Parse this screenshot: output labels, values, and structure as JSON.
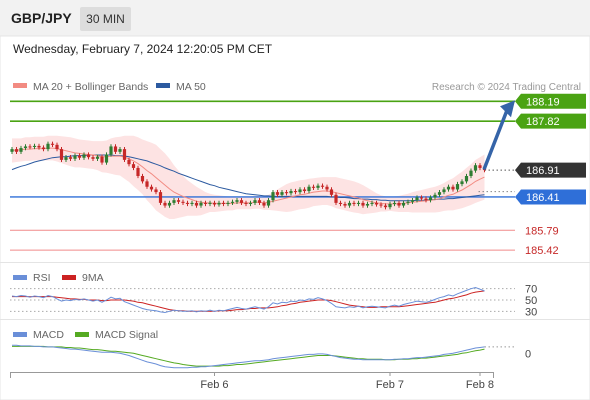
{
  "header": {
    "symbol": "GBP/JPY",
    "timeframe": "30 MIN"
  },
  "datetime": "Wednesday, February 7, 2024 12:20:05 PM CET",
  "credit": "Research © 2024 Trading Central",
  "colors": {
    "up": "#2e7d32",
    "down": "#c62828",
    "ma20": "#f28b82",
    "ma50": "#2c5aa0",
    "band_fill": "#fde3e3",
    "resistance": "#4aa313",
    "support": "#2f6fd8",
    "pivot_red": "#f08a8a",
    "arrow": "#3564a8",
    "rsi": "#6a8fd8",
    "rsi_ma": "#cc2222",
    "macd": "#6a8fd8",
    "macd_signal": "#55aa22"
  },
  "chart_data": [
    {
      "type": "candlestick",
      "name": "price",
      "legend": [
        {
          "label": "MA 20 + Bollinger Bands",
          "color": "#f28b82"
        },
        {
          "label": "MA 50",
          "color": "#2c5aa0"
        }
      ],
      "ylim": [
        185.2,
        188.4
      ],
      "x_ticks": [
        {
          "label": "Feb 6",
          "index": 45
        },
        {
          "label": "Feb 7",
          "index": 84
        },
        {
          "label": "Feb 8",
          "index": 104
        }
      ],
      "price_close": [
        187.3,
        187.25,
        187.32,
        187.35,
        187.34,
        187.36,
        187.33,
        187.3,
        187.4,
        187.38,
        187.3,
        187.1,
        187.15,
        187.12,
        187.18,
        187.14,
        187.2,
        187.15,
        187.12,
        187.16,
        187.05,
        187.2,
        187.35,
        187.25,
        187.3,
        187.1,
        187.02,
        186.95,
        186.8,
        186.7,
        186.6,
        186.55,
        186.5,
        186.3,
        186.25,
        186.3,
        186.35,
        186.32,
        186.3,
        186.28,
        186.3,
        186.25,
        186.3,
        186.28,
        186.3,
        186.27,
        186.3,
        186.28,
        186.3,
        186.32,
        186.35,
        186.3,
        186.28,
        186.3,
        186.35,
        186.3,
        186.25,
        186.35,
        186.5,
        186.45,
        186.5,
        186.48,
        186.52,
        186.5,
        186.55,
        186.52,
        186.6,
        186.58,
        186.62,
        186.6,
        186.55,
        186.45,
        186.3,
        186.28,
        186.25,
        186.3,
        186.28,
        186.3,
        186.25,
        186.28,
        186.3,
        186.27,
        186.25,
        186.22,
        186.28,
        186.3,
        186.25,
        186.3,
        186.32,
        186.35,
        186.4,
        186.38,
        186.35,
        186.4,
        186.45,
        186.5,
        186.55,
        186.6,
        186.55,
        186.65,
        186.7,
        186.8,
        186.9,
        187.0,
        186.95,
        186.91
      ],
      "ma20": [
        187.28,
        187.28,
        187.29,
        187.3,
        187.3,
        187.31,
        187.31,
        187.31,
        187.32,
        187.32,
        187.31,
        187.29,
        187.27,
        187.25,
        187.23,
        187.22,
        187.21,
        187.2,
        187.19,
        187.18,
        187.16,
        187.16,
        187.17,
        187.17,
        187.17,
        187.15,
        187.12,
        187.08,
        187.03,
        186.97,
        186.9,
        186.84,
        186.77,
        186.7,
        186.63,
        186.56,
        186.5,
        186.46,
        186.42,
        186.39,
        186.36,
        186.33,
        186.31,
        186.3,
        186.3,
        186.29,
        186.29,
        186.29,
        186.29,
        186.29,
        186.3,
        186.3,
        186.3,
        186.3,
        186.31,
        186.31,
        186.3,
        186.31,
        186.33,
        186.35,
        186.37,
        186.39,
        186.41,
        186.43,
        186.45,
        186.46,
        186.48,
        186.5,
        186.51,
        186.52,
        186.52,
        186.51,
        186.49,
        186.47,
        186.45,
        186.43,
        186.41,
        186.39,
        186.36,
        186.34,
        186.32,
        186.3,
        186.29,
        186.28,
        186.28,
        186.28,
        186.28,
        186.29,
        186.3,
        186.31,
        186.32,
        186.33,
        186.34,
        186.35,
        186.36,
        186.38,
        186.41,
        186.44,
        186.46,
        186.5,
        186.54,
        186.59,
        186.64,
        186.7,
        186.74,
        186.78
      ],
      "band_upper": [
        187.5,
        187.5,
        187.5,
        187.52,
        187.52,
        187.53,
        187.53,
        187.53,
        187.55,
        187.55,
        187.55,
        187.54,
        187.53,
        187.52,
        187.5,
        187.48,
        187.47,
        187.46,
        187.45,
        187.45,
        187.45,
        187.46,
        187.5,
        187.52,
        187.53,
        187.55,
        187.55,
        187.55,
        187.52,
        187.48,
        187.45,
        187.42,
        187.38,
        187.3,
        187.22,
        187.12,
        187.0,
        186.9,
        186.8,
        186.72,
        186.66,
        186.6,
        186.55,
        186.5,
        186.47,
        186.45,
        186.44,
        186.43,
        186.42,
        186.42,
        186.42,
        186.42,
        186.42,
        186.42,
        186.43,
        186.43,
        186.43,
        186.45,
        186.5,
        186.55,
        186.6,
        186.65,
        186.68,
        186.7,
        186.72,
        186.73,
        186.75,
        186.76,
        186.77,
        186.78,
        186.78,
        186.78,
        186.78,
        186.76,
        186.74,
        186.72,
        186.7,
        186.67,
        186.63,
        186.58,
        186.53,
        186.48,
        186.44,
        186.42,
        186.41,
        186.42,
        186.43,
        186.45,
        186.47,
        186.5,
        186.52,
        186.54,
        186.56,
        186.58,
        186.6,
        186.63,
        186.67,
        186.72,
        186.76,
        186.82,
        186.88,
        186.95,
        187.02,
        187.1,
        187.15,
        187.2
      ],
      "band_lower": [
        187.05,
        187.06,
        187.07,
        187.08,
        187.08,
        187.09,
        187.09,
        187.09,
        187.09,
        187.09,
        187.07,
        187.04,
        187.01,
        186.98,
        186.96,
        186.96,
        186.95,
        186.94,
        186.93,
        186.91,
        186.87,
        186.86,
        186.84,
        186.82,
        186.81,
        186.75,
        186.69,
        186.61,
        186.54,
        186.46,
        186.35,
        186.26,
        186.16,
        186.1,
        186.04,
        186.0,
        186.0,
        186.02,
        186.04,
        186.06,
        186.06,
        186.06,
        186.07,
        186.1,
        186.13,
        186.13,
        186.14,
        186.15,
        186.16,
        186.16,
        186.18,
        186.18,
        186.18,
        186.18,
        186.19,
        186.19,
        186.17,
        186.17,
        186.16,
        186.15,
        186.14,
        186.13,
        186.14,
        186.16,
        186.18,
        186.19,
        186.21,
        186.24,
        186.25,
        186.26,
        186.26,
        186.24,
        186.2,
        186.18,
        186.16,
        186.14,
        186.12,
        186.11,
        186.09,
        186.1,
        186.11,
        186.12,
        186.14,
        186.14,
        186.15,
        186.14,
        186.13,
        186.13,
        186.13,
        186.12,
        186.12,
        186.12,
        186.12,
        186.12,
        186.12,
        186.13,
        186.15,
        186.16,
        186.16,
        186.18,
        186.2,
        186.23,
        186.26,
        186.3,
        186.33,
        186.36
      ],
      "ma50": [
        186.92,
        186.95,
        186.98,
        187.0,
        187.03,
        187.06,
        187.08,
        187.1,
        187.12,
        187.14,
        187.15,
        187.16,
        187.16,
        187.17,
        187.18,
        187.18,
        187.18,
        187.19,
        187.19,
        187.19,
        187.19,
        187.19,
        187.19,
        187.18,
        187.18,
        187.17,
        187.16,
        187.14,
        187.12,
        187.1,
        187.08,
        187.05,
        187.02,
        186.99,
        186.95,
        186.92,
        186.89,
        186.85,
        186.82,
        186.79,
        186.76,
        186.73,
        186.7,
        186.67,
        186.64,
        186.62,
        186.59,
        186.57,
        186.55,
        186.53,
        186.51,
        186.49,
        186.47,
        186.46,
        186.45,
        186.44,
        186.43,
        186.43,
        186.42,
        186.42,
        186.42,
        186.42,
        186.42,
        186.42,
        186.42,
        186.42,
        186.42,
        186.42,
        186.42,
        186.42,
        186.42,
        186.41,
        186.41,
        186.4,
        186.4,
        186.39,
        186.38,
        186.38,
        186.37,
        186.37,
        186.36,
        186.36,
        186.35,
        186.35,
        186.34,
        186.34,
        186.34,
        186.34,
        186.34,
        186.34,
        186.35,
        186.35,
        186.35,
        186.36,
        186.36,
        186.37,
        186.37,
        186.38,
        186.38,
        186.39,
        186.4,
        186.41,
        186.42,
        186.43,
        186.44,
        186.45
      ],
      "levels": [
        {
          "value": 188.19,
          "label": "188.19",
          "kind": "resistance"
        },
        {
          "value": 187.82,
          "label": "187.82",
          "kind": "resistance"
        },
        {
          "value": 186.91,
          "label": "186.91",
          "kind": "last"
        },
        {
          "value": 186.41,
          "label": "186.41",
          "kind": "support"
        },
        {
          "value": 185.79,
          "label": "185.79",
          "kind": "pivot"
        },
        {
          "value": 185.42,
          "label": "185.42",
          "kind": "pivot"
        }
      ],
      "target_arrow": {
        "from_index": 105,
        "from_value": 186.91,
        "to_value": 188.19
      }
    },
    {
      "type": "line",
      "name": "rsi",
      "legend": [
        {
          "label": "RSI",
          "color": "#6a8fd8"
        },
        {
          "label": "9MA",
          "color": "#cc2222"
        }
      ],
      "ylim": [
        20,
        80
      ],
      "levels": [
        {
          "value": 70,
          "label": "70"
        },
        {
          "value": 50,
          "label": "50"
        },
        {
          "value": 30,
          "label": "30"
        }
      ],
      "rsi": [
        57,
        56,
        58,
        57,
        55,
        57,
        56,
        54,
        58,
        56,
        52,
        48,
        50,
        49,
        51,
        50,
        52,
        50,
        48,
        50,
        46,
        50,
        55,
        52,
        53,
        47,
        44,
        41,
        38,
        35,
        33,
        32,
        31,
        29,
        28,
        30,
        32,
        31,
        30,
        30,
        31,
        29,
        31,
        30,
        32,
        30,
        32,
        31,
        33,
        35,
        37,
        35,
        34,
        36,
        38,
        36,
        34,
        38,
        45,
        43,
        46,
        45,
        48,
        47,
        50,
        49,
        52,
        51,
        54,
        52,
        49,
        44,
        38,
        37,
        36,
        38,
        37,
        39,
        36,
        38,
        39,
        38,
        37,
        36,
        39,
        41,
        39,
        42,
        44,
        46,
        48,
        47,
        46,
        48,
        51,
        54,
        56,
        59,
        57,
        61,
        64,
        67,
        70,
        72,
        69,
        66
      ],
      "rsi_ma": [
        56,
        56,
        56,
        56,
        56,
        56,
        56,
        56,
        56,
        56,
        55,
        54,
        53,
        52,
        52,
        51,
        51,
        50,
        50,
        50,
        49,
        49,
        50,
        50,
        50,
        50,
        49,
        48,
        46,
        45,
        43,
        41,
        39,
        37,
        35,
        33,
        32,
        31,
        31,
        30,
        30,
        30,
        30,
        30,
        30,
        30,
        31,
        31,
        31,
        32,
        33,
        33,
        34,
        35,
        35,
        36,
        36,
        36,
        37,
        38,
        40,
        41,
        43,
        44,
        46,
        47,
        48,
        49,
        50,
        50,
        50,
        49,
        47,
        45,
        43,
        41,
        40,
        39,
        38,
        37,
        37,
        37,
        38,
        38,
        38,
        38,
        38,
        39,
        40,
        41,
        42,
        43,
        44,
        45,
        46,
        48,
        50,
        52,
        53,
        55,
        57,
        59,
        62,
        64,
        65,
        66
      ]
    },
    {
      "type": "line",
      "name": "macd",
      "legend": [
        {
          "label": "MACD",
          "color": "#6a8fd8"
        },
        {
          "label": "MACD Signal",
          "color": "#55aa22"
        }
      ],
      "ylim": [
        -0.35,
        0.25
      ],
      "levels": [
        {
          "value": 0,
          "label": "0"
        }
      ],
      "macd": [
        0.15,
        0.15,
        0.14,
        0.14,
        0.14,
        0.13,
        0.13,
        0.12,
        0.12,
        0.12,
        0.11,
        0.1,
        0.09,
        0.08,
        0.08,
        0.07,
        0.06,
        0.05,
        0.04,
        0.03,
        0.02,
        0.02,
        0.02,
        0.01,
        0.0,
        -0.02,
        -0.04,
        -0.07,
        -0.1,
        -0.13,
        -0.16,
        -0.18,
        -0.2,
        -0.23,
        -0.25,
        -0.26,
        -0.27,
        -0.27,
        -0.27,
        -0.27,
        -0.26,
        -0.26,
        -0.25,
        -0.25,
        -0.24,
        -0.23,
        -0.22,
        -0.21,
        -0.2,
        -0.19,
        -0.18,
        -0.17,
        -0.16,
        -0.15,
        -0.14,
        -0.14,
        -0.13,
        -0.12,
        -0.1,
        -0.09,
        -0.08,
        -0.07,
        -0.06,
        -0.05,
        -0.04,
        -0.03,
        -0.02,
        -0.02,
        -0.01,
        -0.01,
        -0.02,
        -0.04,
        -0.06,
        -0.08,
        -0.09,
        -0.1,
        -0.11,
        -0.11,
        -0.12,
        -0.12,
        -0.12,
        -0.12,
        -0.12,
        -0.12,
        -0.12,
        -0.11,
        -0.11,
        -0.1,
        -0.1,
        -0.09,
        -0.08,
        -0.08,
        -0.07,
        -0.06,
        -0.05,
        -0.04,
        -0.02,
        -0.01,
        0.0,
        0.02,
        0.04,
        0.06,
        0.08,
        0.1,
        0.11,
        0.12
      ],
      "signal": [
        0.13,
        0.13,
        0.13,
        0.13,
        0.13,
        0.13,
        0.13,
        0.13,
        0.12,
        0.12,
        0.12,
        0.12,
        0.11,
        0.11,
        0.1,
        0.1,
        0.09,
        0.08,
        0.07,
        0.07,
        0.06,
        0.05,
        0.04,
        0.04,
        0.03,
        0.02,
        0.01,
        0.0,
        -0.02,
        -0.04,
        -0.06,
        -0.08,
        -0.1,
        -0.12,
        -0.14,
        -0.16,
        -0.18,
        -0.19,
        -0.21,
        -0.22,
        -0.23,
        -0.24,
        -0.24,
        -0.24,
        -0.24,
        -0.24,
        -0.24,
        -0.23,
        -0.23,
        -0.22,
        -0.21,
        -0.21,
        -0.2,
        -0.19,
        -0.18,
        -0.17,
        -0.16,
        -0.15,
        -0.14,
        -0.13,
        -0.12,
        -0.11,
        -0.1,
        -0.09,
        -0.08,
        -0.07,
        -0.06,
        -0.05,
        -0.04,
        -0.04,
        -0.04,
        -0.04,
        -0.05,
        -0.06,
        -0.07,
        -0.08,
        -0.09,
        -0.1,
        -0.1,
        -0.11,
        -0.11,
        -0.11,
        -0.11,
        -0.12,
        -0.12,
        -0.12,
        -0.11,
        -0.11,
        -0.11,
        -0.1,
        -0.1,
        -0.09,
        -0.09,
        -0.08,
        -0.07,
        -0.06,
        -0.05,
        -0.04,
        -0.03,
        -0.02,
        0.0,
        0.01,
        0.03,
        0.05,
        0.06,
        0.08
      ]
    }
  ]
}
